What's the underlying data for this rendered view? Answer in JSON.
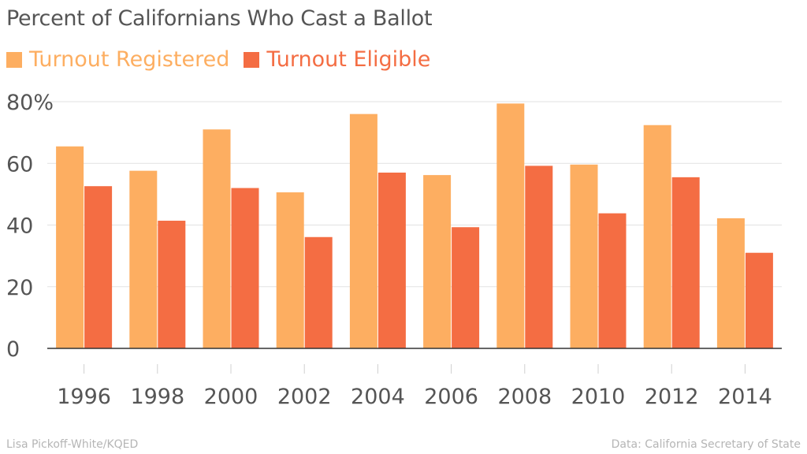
{
  "chart_data": {
    "type": "bar",
    "title": "Percent of Californians Who Cast a Ballot",
    "xlabel": "",
    "ylabel": "",
    "ylim": [
      0,
      80
    ],
    "yticks": [
      "0",
      "20",
      "40",
      "60",
      "80%"
    ],
    "ytick_values": [
      0,
      20,
      40,
      60,
      80
    ],
    "grid": true,
    "legend_position": "top-left",
    "categories": [
      "1996",
      "1998",
      "2000",
      "2002",
      "2004",
      "2006",
      "2008",
      "2010",
      "2012",
      "2014"
    ],
    "series": [
      {
        "name": "Turnout Registered",
        "color": "#fdae61",
        "values": [
          65.5,
          57.6,
          71.0,
          50.6,
          76.0,
          56.2,
          79.4,
          59.6,
          72.4,
          42.2
        ]
      },
      {
        "name": "Turnout Eligible",
        "color": "#f46d43",
        "values": [
          52.6,
          41.4,
          52.0,
          36.1,
          57.0,
          39.3,
          59.2,
          43.8,
          55.5,
          31.0
        ]
      }
    ]
  },
  "footer": {
    "credit": "Lisa Pickoff-White/KQED",
    "source": "Data: California Secretary of State"
  }
}
